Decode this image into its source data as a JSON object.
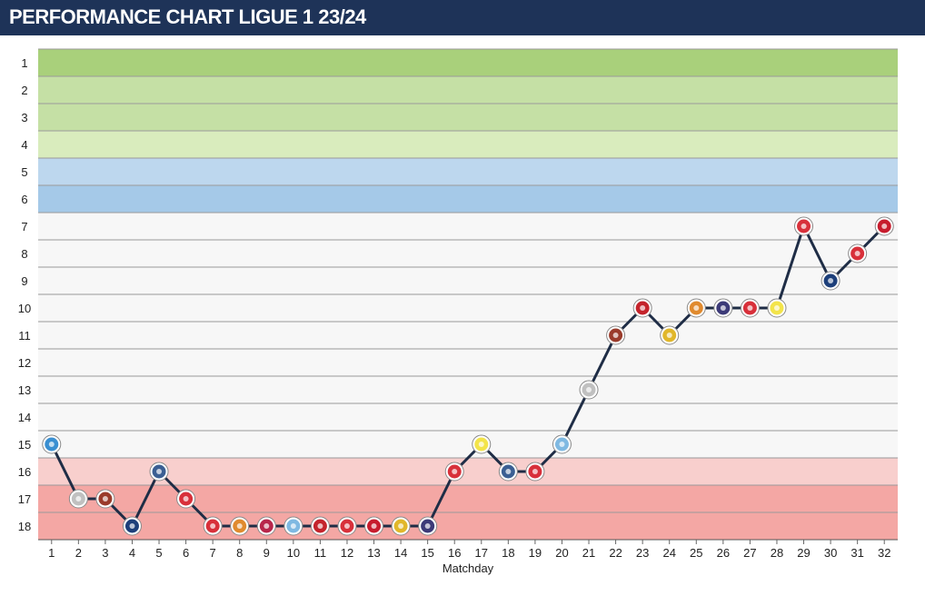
{
  "title": "PERFORMANCE CHART LIGUE 1 23/24",
  "chart_data": {
    "type": "line",
    "title": "PERFORMANCE CHART LIGUE 1 23/24",
    "xlabel": "Matchday",
    "ylabel": "",
    "x": [
      1,
      2,
      3,
      4,
      5,
      6,
      7,
      8,
      9,
      10,
      11,
      12,
      13,
      14,
      15,
      16,
      17,
      18,
      19,
      20,
      21,
      22,
      23,
      24,
      25,
      26,
      27,
      28,
      29,
      30,
      31,
      32
    ],
    "y": [
      15,
      17,
      17,
      18,
      16,
      17,
      18,
      18,
      18,
      18,
      18,
      18,
      18,
      18,
      18,
      16,
      15,
      16,
      16,
      15,
      13,
      11,
      10,
      11,
      10,
      10,
      10,
      10,
      7,
      9,
      8,
      7
    ],
    "y_axis": {
      "ticks": [
        1,
        2,
        3,
        4,
        5,
        6,
        7,
        8,
        9,
        10,
        11,
        12,
        13,
        14,
        15,
        16,
        17,
        18
      ],
      "inverted": true
    },
    "x_ticks": [
      "1",
      "2",
      "3",
      "4",
      "5",
      "6",
      "7",
      "8",
      "9",
      "10",
      "11",
      "12",
      "13",
      "14",
      "15",
      "16",
      "17",
      "18",
      "19",
      "20",
      "21",
      "22",
      "23",
      "24",
      "25",
      "26",
      "27",
      "28",
      "29",
      "30",
      "31",
      "32"
    ],
    "bands": [
      {
        "from": 1,
        "to": 1,
        "color": "#a9d07b"
      },
      {
        "from": 2,
        "to": 3,
        "color": "#c5e0a5"
      },
      {
        "from": 4,
        "to": 4,
        "color": "#d9ecbd"
      },
      {
        "from": 5,
        "to": 5,
        "color": "#bdd7ee"
      },
      {
        "from": 6,
        "to": 6,
        "color": "#a5c9e8"
      },
      {
        "from": 7,
        "to": 15,
        "color": "#f7f7f7"
      },
      {
        "from": 16,
        "to": 16,
        "color": "#f8cfcd"
      },
      {
        "from": 17,
        "to": 18,
        "color": "#f4a7a4"
      }
    ],
    "line_color": "#1f2d46",
    "opponent_marker_colors": [
      "#3a8fd1",
      "#c0c0c0",
      "#9a3b2b",
      "#1d3f7a",
      "#3b5f93",
      "#d8303a",
      "#d8303a",
      "#e08a2e",
      "#b8254a",
      "#7fb9e2",
      "#c4232b",
      "#d8303a",
      "#c71c2d",
      "#e1b72a",
      "#3c3a78",
      "#d8303a",
      "#f3e44a",
      "#3b5f93",
      "#d8303a",
      "#7fb9e2",
      "#c0c0c0",
      "#9a3b2b",
      "#c4232b",
      "#e1b72a",
      "#e08a2e",
      "#3c3a78",
      "#d8303a",
      "#f3e44a",
      "#d8303a",
      "#1d3f7a",
      "#d8303a",
      "#c71c2d"
    ],
    "grid": true,
    "legend": "none"
  }
}
